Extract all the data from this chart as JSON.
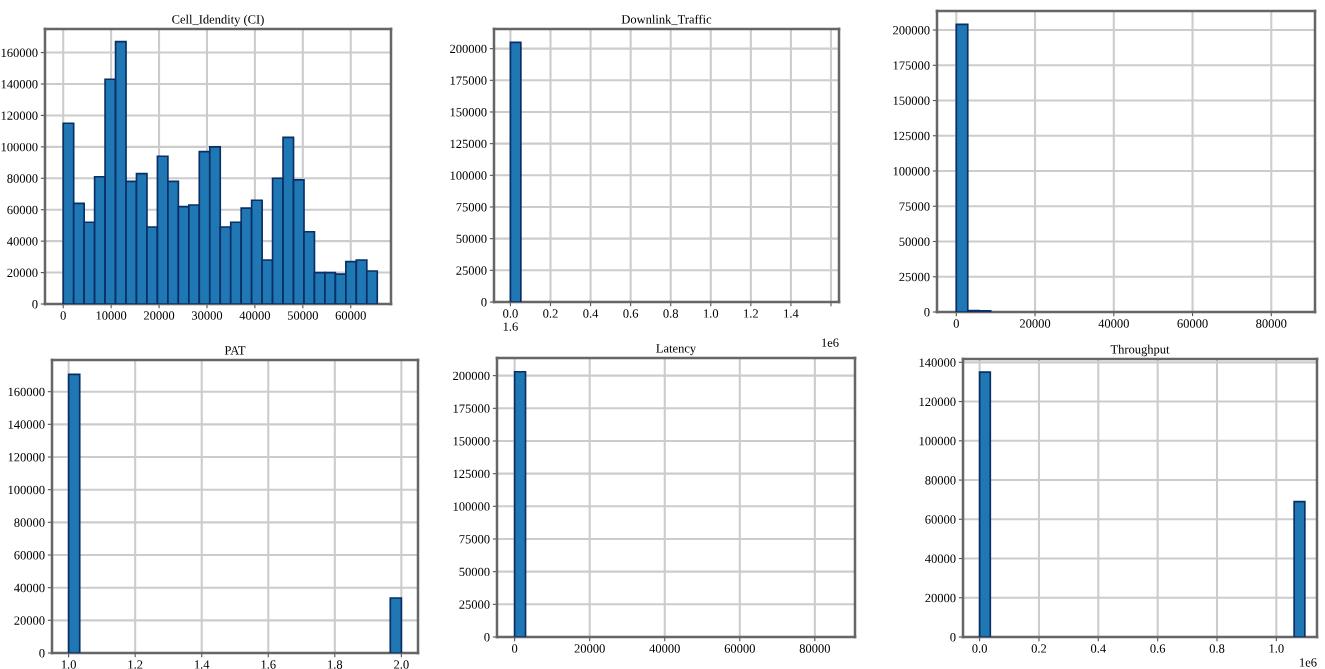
{
  "chart_data": [
    {
      "type": "histogram",
      "title": "Cell_Idendity (CI)",
      "color": "#1f77b4",
      "bins": [
        0,
        2185,
        4369,
        6554,
        8738,
        10923,
        13107,
        15292,
        17476,
        19661,
        21845,
        24030,
        26214,
        28399,
        30583,
        32768,
        34952,
        37137,
        39321,
        41506,
        43690,
        45875,
        48059,
        50244,
        52428,
        54613,
        56797,
        58982,
        61166,
        63351,
        65535
      ],
      "values": [
        115000,
        64000,
        52000,
        81000,
        143000,
        167000,
        78000,
        83000,
        49000,
        94000,
        78000,
        62000,
        63000,
        97000,
        100000,
        49000,
        52000,
        61000,
        66000,
        28000,
        80000,
        106000,
        79000,
        46000,
        20000,
        20000,
        19000,
        27000,
        28000,
        21000
      ],
      "xlim": [
        -3800,
        68400
      ],
      "xticks": [
        0,
        10000,
        20000,
        30000,
        40000,
        50000,
        60000
      ],
      "ylim": [
        0,
        175000
      ],
      "yticks": [
        0,
        20000,
        40000,
        60000,
        80000,
        100000,
        120000,
        140000,
        160000
      ],
      "grid": true
    },
    {
      "type": "histogram",
      "title": "Downlink_Traffic",
      "color": "#1f77b4",
      "bins": [
        0,
        0.052
      ],
      "values": [
        205000
      ],
      "xlim": [
        -0.082,
        1.64
      ],
      "xticks": [
        {
          "value": 0,
          "label": "0.0\n1.6"
        },
        0.2,
        0.4,
        0.6,
        0.8,
        {
          "value": 1.0,
          "label": "1.0"
        },
        1.2,
        1.4,
        {
          "value": 1.6,
          "label": null
        }
      ],
      "ylim": [
        0,
        215500
      ],
      "yticks": [
        0,
        25000,
        50000,
        75000,
        100000,
        125000,
        150000,
        175000,
        200000
      ],
      "grid": true,
      "annotations": [
        "1e6"
      ]
    },
    {
      "type": "histogram",
      "color": "#1f77b4",
      "bins": [
        0,
        2910,
        5820,
        8730
      ],
      "values": [
        204000,
        1000,
        800
      ],
      "xlim": [
        -4900,
        91100
      ],
      "xticks": [
        0,
        20000,
        40000,
        60000,
        80000
      ],
      "ylim": [
        0,
        213500
      ],
      "yticks": [
        0,
        25000,
        50000,
        75000,
        100000,
        125000,
        150000,
        175000,
        200000
      ],
      "grid": true
    },
    {
      "type": "histogram",
      "title": "PAT",
      "color": "#1f77b4",
      "bins": [
        1.0,
        1.0333,
        1.9667,
        2.0
      ],
      "values": [
        170600,
        0,
        33700
      ],
      "xlim": [
        0.95,
        2.05
      ],
      "xticks": [
        {
          "value": 1.0,
          "label": "1.0"
        },
        1.2,
        1.4,
        1.6,
        1.8,
        {
          "value": 2.0,
          "label": "2.0"
        }
      ],
      "ylim": [
        0,
        179400
      ],
      "yticks": [
        0,
        20000,
        40000,
        60000,
        80000,
        100000,
        120000,
        140000,
        160000
      ],
      "grid": true
    },
    {
      "type": "histogram",
      "title": "Latency",
      "color": "#1f77b4",
      "bins": [
        0,
        2900
      ],
      "values": [
        203000
      ],
      "xlim": [
        -4700,
        90700
      ],
      "xticks": [
        0,
        20000,
        40000,
        60000,
        80000
      ],
      "ylim": [
        0,
        213500
      ],
      "yticks": [
        0,
        25000,
        50000,
        75000,
        100000,
        125000,
        150000,
        175000,
        200000
      ],
      "grid": true
    },
    {
      "type": "histogram",
      "title": "Throughput",
      "color": "#1f77b4",
      "bins": [
        0,
        0.036,
        1.06,
        1.096
      ],
      "values": [
        135000,
        0,
        69000
      ],
      "xlim": [
        -0.056,
        1.137
      ],
      "xticks": [
        {
          "value": 0,
          "label": "0.0"
        },
        0.2,
        0.4,
        0.6,
        0.8,
        {
          "value": 1.0,
          "label": "1.0"
        }
      ],
      "ylim": [
        0,
        141700
      ],
      "yticks": [
        0,
        20000,
        40000,
        60000,
        80000,
        100000,
        120000,
        140000
      ],
      "grid": true,
      "annotations": [
        "1e6"
      ]
    }
  ]
}
